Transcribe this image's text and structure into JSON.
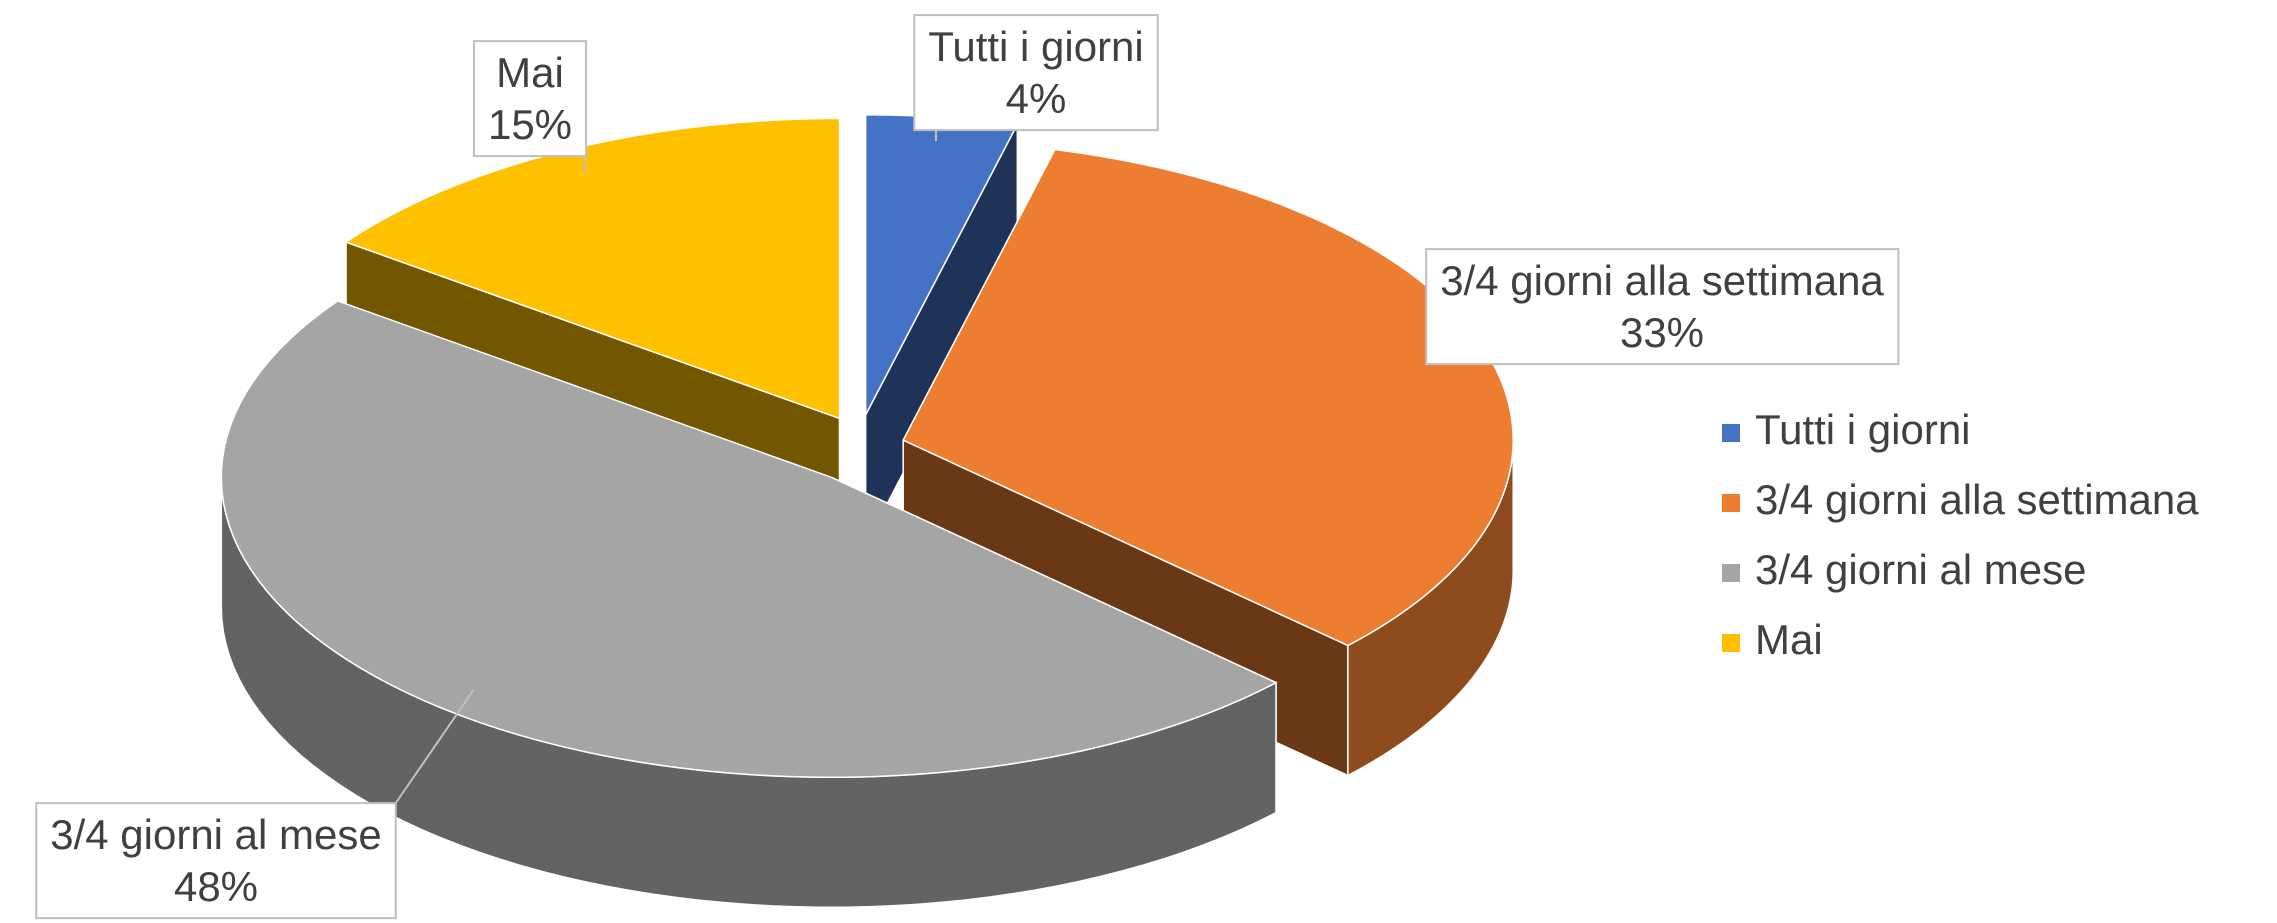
{
  "chart_data": {
    "type": "pie3d",
    "categories": [
      "Tutti i giorni",
      "3/4 giorni alla settimana",
      "3/4 giorni al mese",
      "Mai"
    ],
    "values": [
      4,
      33,
      48,
      15
    ],
    "value_labels": [
      "4%",
      "33%",
      "48%",
      "15%"
    ],
    "colors": [
      "#4472c4",
      "#ed7d31",
      "#a5a5a5",
      "#ffc000"
    ],
    "legend": "right"
  }
}
